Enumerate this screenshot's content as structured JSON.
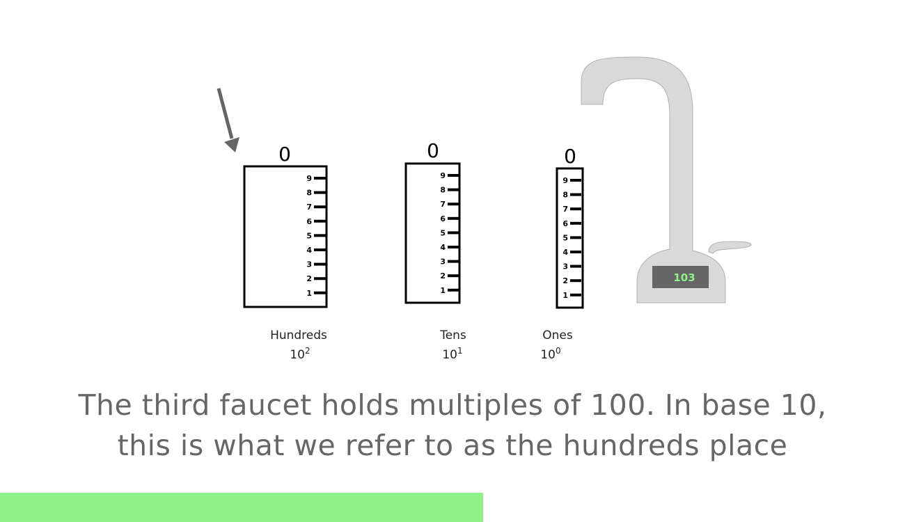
{
  "arrow_color": "#666666",
  "cylinders": [
    {
      "id": "hundreds",
      "value": "0",
      "name": "Hundreds",
      "base": "10",
      "exponent": "2"
    },
    {
      "id": "tens",
      "value": "0",
      "name": "Tens",
      "base": "10",
      "exponent": "1"
    },
    {
      "id": "ones",
      "value": "0",
      "name": "Ones",
      "base": "10",
      "exponent": "0"
    }
  ],
  "scale_marks": [
    "9",
    "8",
    "7",
    "6",
    "5",
    "4",
    "3",
    "2",
    "1"
  ],
  "faucet": {
    "display_value": "103",
    "body_color": "#d9d9d9",
    "display_bg": "#666666",
    "display_text_color": "#8ef28a"
  },
  "caption": {
    "line1": "The third faucet holds multiples of 100. In base 10,",
    "line2": "this is what we refer to as the hundreds place",
    "color": "#666666"
  },
  "progress": {
    "fraction": 0.534,
    "color": "#8ef28a"
  }
}
